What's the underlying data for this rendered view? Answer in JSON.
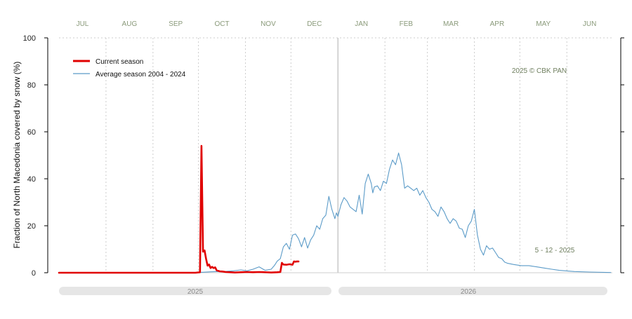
{
  "chart_data": {
    "type": "line",
    "ylabel": "Fraction of  North Macedonia  covered by snow (%)",
    "ylim": [
      0,
      100
    ],
    "yticks": [
      0,
      20,
      40,
      60,
      80,
      100
    ],
    "ytick_labels": [
      "0",
      "20",
      "40",
      "60",
      "80",
      "100"
    ],
    "months": [
      "JUL",
      "AUG",
      "SEP",
      "OCT",
      "NOV",
      "DEC",
      "JAN",
      "FEB",
      "MAR",
      "APR",
      "MAY",
      "JUN"
    ],
    "years": [
      "2025",
      "2026"
    ],
    "copyright": "2025  © CBK PAN",
    "date_note": "5 - 12 - 2025",
    "grid": true,
    "legend_position": "top-left",
    "colors": {
      "current": "#e00000",
      "average": "#5b9bc8"
    },
    "series": [
      {
        "name": "Current season",
        "days": [
          0,
          30,
          60,
          90,
          93,
          94,
          95,
          96,
          97,
          98,
          99,
          100,
          101,
          102,
          103,
          104,
          105,
          106,
          108,
          110,
          113,
          116,
          120,
          124,
          128,
          132,
          136,
          140,
          144,
          146,
          147,
          148,
          150,
          152,
          154,
          155,
          156,
          157,
          158
        ],
        "values": [
          0,
          0,
          0,
          0,
          0.2,
          54,
          9,
          9.5,
          6,
          3,
          3.5,
          2,
          2.5,
          2,
          2.3,
          1,
          0.8,
          0.6,
          0.5,
          0.3,
          0.2,
          0.1,
          0.2,
          0.3,
          0.2,
          0.3,
          0.2,
          0.1,
          0.2,
          0.3,
          4.2,
          3.5,
          3.4,
          3.6,
          3.4,
          4.8,
          4.7,
          4.8,
          4.8
        ]
      },
      {
        "name": "Average season 2004 - 2024",
        "days": [
          90,
          95,
          100,
          105,
          110,
          115,
          120,
          124,
          128,
          132,
          136,
          140,
          142,
          144,
          146,
          148,
          150,
          152,
          154,
          156,
          158,
          160,
          162,
          164,
          166,
          168,
          170,
          172,
          174,
          176,
          178,
          180,
          182,
          183,
          184,
          186,
          188,
          190,
          192,
          194,
          196,
          198,
          200,
          202,
          204,
          206,
          207,
          208,
          210,
          212,
          214,
          216,
          218,
          220,
          222,
          224,
          226,
          228,
          230,
          232,
          234,
          236,
          238,
          240,
          242,
          244,
          246,
          248,
          250,
          252,
          254,
          256,
          258,
          260,
          262,
          264,
          266,
          268,
          270,
          272,
          274,
          276,
          278,
          280,
          282,
          284,
          286,
          288,
          290,
          292,
          294,
          296,
          300,
          305,
          310,
          315,
          320,
          325,
          330,
          340,
          350,
          364
        ],
        "values": [
          0.1,
          0.2,
          0.4,
          0.5,
          0.6,
          0.8,
          1.2,
          0.8,
          1.5,
          2.5,
          1.0,
          1.5,
          3.0,
          5.0,
          6.0,
          11.0,
          12.5,
          10.0,
          16.0,
          16.5,
          14.5,
          11.0,
          15.0,
          10.5,
          14.0,
          16.0,
          20.0,
          18.5,
          23.0,
          24.5,
          32.5,
          27.0,
          23.0,
          25.5,
          24.0,
          29.0,
          32.0,
          30.5,
          28.0,
          27.0,
          26.0,
          33.0,
          25.0,
          38.0,
          42.0,
          38.0,
          34.0,
          36.5,
          37.0,
          35.0,
          39.0,
          38.0,
          44.0,
          48.0,
          46.0,
          51.0,
          46.0,
          36.0,
          37.0,
          36.0,
          35.0,
          36.0,
          33.0,
          35.0,
          32.0,
          30.0,
          27.0,
          26.0,
          24.0,
          28.0,
          26.0,
          23.0,
          21.0,
          23.0,
          22.0,
          19.0,
          18.5,
          15.0,
          20.0,
          22.0,
          27.0,
          16.0,
          10.0,
          7.5,
          11.5,
          10.0,
          10.5,
          8.5,
          6.5,
          6.0,
          4.5,
          4.0,
          3.5,
          3.0,
          3.0,
          2.5,
          2.0,
          1.5,
          1.0,
          0.5,
          0.3,
          0.1
        ]
      }
    ]
  }
}
